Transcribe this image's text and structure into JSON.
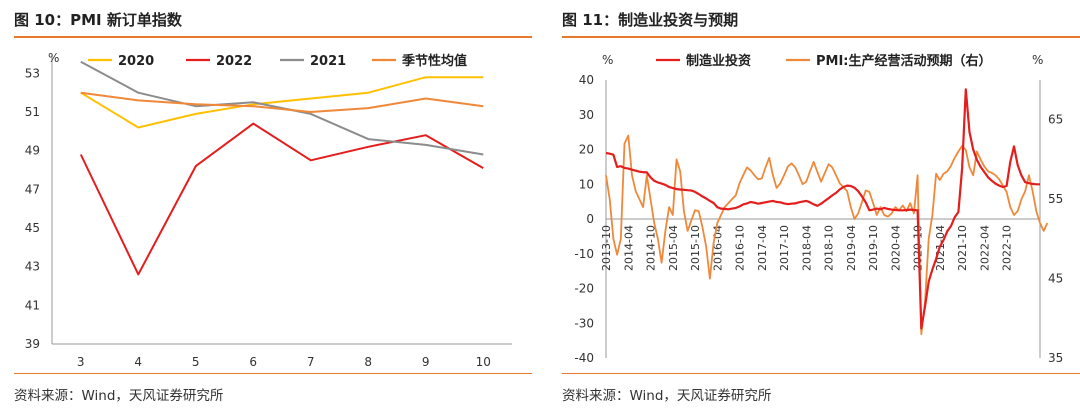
{
  "charts": {
    "left": {
      "title": "图 10：PMI 新订单指数",
      "source": "资料来源：Wind，天风证券研究所",
      "chart_data": {
        "type": "line",
        "ylabel": "%",
        "categories": [
          "3",
          "4",
          "5",
          "6",
          "7",
          "8",
          "9",
          "10"
        ],
        "ylim": [
          39,
          54
        ],
        "yticks": [
          39,
          41,
          43,
          45,
          47,
          49,
          51,
          53
        ],
        "series": [
          {
            "name": "2020",
            "color": "#ffc000",
            "values": [
              52.0,
              50.2,
              50.9,
              51.4,
              51.7,
              52.0,
              52.8,
              52.8
            ]
          },
          {
            "name": "2022",
            "color": "#e41d1d",
            "values": [
              48.8,
              42.6,
              48.2,
              50.4,
              48.5,
              49.2,
              49.8,
              48.1
            ]
          },
          {
            "name": "2021",
            "color": "#8c8c8c",
            "values": [
              53.6,
              52.0,
              51.3,
              51.5,
              50.9,
              49.6,
              49.3,
              48.8
            ]
          },
          {
            "name": "季节性均值",
            "color": "#f0883a",
            "values": [
              52.0,
              51.6,
              51.4,
              51.3,
              51.0,
              51.2,
              51.7,
              51.3
            ]
          }
        ]
      }
    },
    "right": {
      "title": "图 11：制造业投资与预期",
      "source": "资料来源：Wind，天风证券研究所",
      "chart_data": {
        "type": "line",
        "ylabel_left": "%",
        "ylabel_right": "%",
        "ylim_left": [
          -40,
          40
        ],
        "yticks_left": [
          -40,
          -30,
          -20,
          -10,
          0,
          10,
          20,
          30,
          40
        ],
        "ylim_right": [
          35,
          70
        ],
        "yticks_right": [
          35,
          45,
          55,
          65
        ],
        "xticks": [
          "2013-10",
          "2014-04",
          "2014-10",
          "2015-04",
          "2015-10",
          "2016-04",
          "2016-10",
          "2017-04",
          "2017-10",
          "2018-04",
          "2018-10",
          "2019-04",
          "2019-10",
          "2020-04",
          "2020-10",
          "2021-04",
          "2021-10",
          "2022-04",
          "2022-10"
        ],
        "series": [
          {
            "name": "制造业投资",
            "axis": "left",
            "color": "#e41d1d",
            "start": "2013-10",
            "values": [
              19,
              18.8,
              18.5,
              15,
              15.2,
              14.7,
              14.5,
              14.2,
              13.9,
              13.6,
              13.5,
              13.4,
              12,
              11,
              10.5,
              10.2,
              9.8,
              9.2,
              8.9,
              8.6,
              8.5,
              8.4,
              8.3,
              8.2,
              7.8,
              7.2,
              6.5,
              5.9,
              5.2,
              4.6,
              3.4,
              3.0,
              2.9,
              2.8,
              3.0,
              3.2,
              3.6,
              4.2,
              4.5,
              4.9,
              4.7,
              4.4,
              4.6,
              4.8,
              5.0,
              5.2,
              4.9,
              4.8,
              4.5,
              4.3,
              4.4,
              4.5,
              4.8,
              5.0,
              5.2,
              4.8,
              4.2,
              3.8,
              4.4,
              5.2,
              6.0,
              6.8,
              7.5,
              8.5,
              9.2,
              9.6,
              9.5,
              9.0,
              8.0,
              6.5,
              4.8,
              2.5,
              2.7,
              3.0,
              2.8,
              3.2,
              2.9,
              2.7,
              2.6,
              2.5,
              2.5,
              2.6,
              2.7,
              2.6,
              2.5,
              -31.5,
              -25.2,
              -18.0,
              -14.5,
              -11.5,
              -8.0,
              -6.0,
              -3.5,
              -2.0,
              0.5,
              2.0,
              14.5,
              37.3,
              25.0,
              20.0,
              17.0,
              15.0,
              13.5,
              12.0,
              11.0,
              10.2,
              9.6,
              9.2,
              9.5,
              16.5,
              20.9,
              15.5,
              12.5,
              10.6,
              10.3,
              10.1,
              10.0,
              10.0
            ]
          },
          {
            "name": "PMI:生产经营活动预期（右）",
            "axis": "right",
            "color": "#f0883a",
            "start": "2013-10",
            "values": [
              58,
              55,
              50,
              48,
              50,
              62,
              63,
              58,
              56,
              55,
              54,
              58,
              55,
              52,
              50,
              47,
              51,
              54,
              53,
              60,
              58.5,
              53.5,
              51,
              52.3,
              53.6,
              53.5,
              51.5,
              49,
              45,
              49.5,
              52,
              53,
              54,
              54.5,
              55,
              55.5,
              57,
              58,
              59,
              58.6,
              58,
              57.5,
              57.6,
              59,
              60.2,
              58,
              56.4,
              57,
              58,
              59.1,
              59.5,
              59,
              58,
              56.9,
              57.2,
              58.5,
              59.7,
              58.4,
              57.2,
              58.3,
              59.4,
              59,
              58,
              57,
              56.5,
              56,
              54,
              52.5,
              53.2,
              54.6,
              56.1,
              55.9,
              54.5,
              53,
              54,
              53,
              52.8,
              53.2,
              54,
              53.6,
              54.2,
              53.5,
              54.5,
              53.2,
              58,
              38,
              42,
              50,
              53,
              58.2,
              57.4,
              58.2,
              58.5,
              59.2,
              60.2,
              61,
              61.7,
              61.2,
              59,
              58,
              61,
              60,
              59.1,
              58.5,
              58.3,
              58.0,
              57.5,
              56.7,
              55.9,
              54,
              53,
              53.5,
              55,
              56,
              58,
              56,
              53.5,
              52,
              51,
              52
            ]
          }
        ]
      }
    }
  }
}
